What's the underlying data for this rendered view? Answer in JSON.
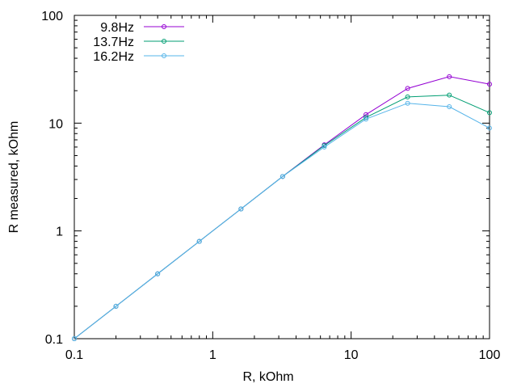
{
  "chart_data": {
    "type": "line",
    "title": "",
    "xlabel": "R, kOhm",
    "ylabel": "R measured, kOhm",
    "xscale": "log",
    "yscale": "log",
    "xlim": [
      0.1,
      100
    ],
    "ylim": [
      0.1,
      100
    ],
    "xticks": [
      0.1,
      1,
      10,
      100
    ],
    "xtick_labels": [
      "0.1",
      "1",
      "10",
      "100"
    ],
    "yticks": [
      0.1,
      1,
      10,
      100
    ],
    "ytick_labels": [
      "0.1",
      "1",
      "10",
      "100"
    ],
    "grid": false,
    "legend_position": "top-left",
    "series": [
      {
        "name": "9.8Hz",
        "color": "#9400d3",
        "x": [
          0.1,
          0.2,
          0.4,
          0.8,
          1.6,
          3.2,
          6.4,
          12.8,
          25.6,
          51.2,
          100
        ],
        "y": [
          0.1,
          0.2,
          0.4,
          0.8,
          1.6,
          3.2,
          6.3,
          12.0,
          21.0,
          27.0,
          23.0
        ]
      },
      {
        "name": "13.7Hz",
        "color": "#009e73",
        "x": [
          0.1,
          0.2,
          0.4,
          0.8,
          1.6,
          3.2,
          6.4,
          12.8,
          25.6,
          51.2,
          100
        ],
        "y": [
          0.1,
          0.2,
          0.4,
          0.8,
          1.6,
          3.2,
          6.2,
          11.3,
          17.5,
          18.2,
          12.5
        ]
      },
      {
        "name": "16.2Hz",
        "color": "#56b4e9",
        "x": [
          0.1,
          0.2,
          0.4,
          0.8,
          1.6,
          3.2,
          6.4,
          12.8,
          25.6,
          51.2,
          100
        ],
        "y": [
          0.1,
          0.2,
          0.4,
          0.8,
          1.6,
          3.2,
          6.0,
          10.9,
          15.3,
          14.2,
          9.0
        ]
      }
    ]
  }
}
